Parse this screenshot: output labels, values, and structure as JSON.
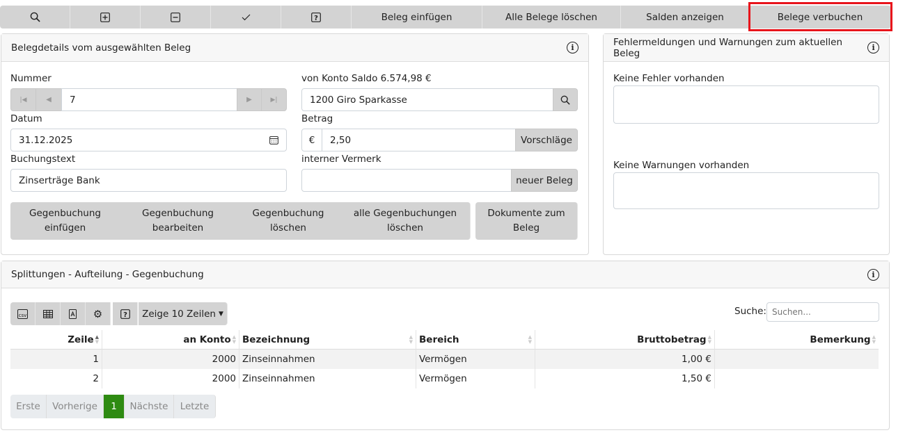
{
  "toolbar": {
    "icons": [
      "search-icon",
      "plus-square-icon",
      "minus-square-icon",
      "check-icon",
      "question-square-icon"
    ],
    "insert": "Beleg einfügen",
    "delete_all": "Alle Belege löschen",
    "balances": "Salden anzeigen",
    "post": "Belege verbuchen",
    "highlight_color": "#e8141b"
  },
  "details": {
    "title": "Belegdetails vom ausgewählten Beleg",
    "nummer_label": "Nummer",
    "nummer": "7",
    "konto_label": "von Konto Saldo 6.574,98 €",
    "konto": "1200 Giro Sparkasse",
    "datum_label": "Datum",
    "datum": "31.12.2025",
    "betrag_label": "Betrag",
    "currency": "€",
    "betrag": "2,50",
    "vorschlaege": "Vorschläge",
    "text_label": "Buchungstext",
    "text": "Zinserträge Bank",
    "vermerk_label": "interner Vermerk",
    "vermerk": "",
    "neuer": "neuer Beleg",
    "buttons": [
      [
        "Gegenbuchung",
        "einfügen"
      ],
      [
        "Gegenbuchung",
        "bearbeiten"
      ],
      [
        "Gegenbuchung",
        "löschen"
      ],
      [
        "alle Gegenbuchungen",
        "löschen"
      ],
      [
        "Dokumente zum",
        "Beleg"
      ]
    ]
  },
  "errors": {
    "title": "Fehlermeldungen und Warnungen zum aktuellen Beleg",
    "no_errors": "Keine Fehler vorhanden",
    "no_warnings": "Keine Warnungen vorhanden"
  },
  "split": {
    "title": "Splittungen - Aufteilung - Gegenbuchung",
    "rows_label": "Zeige 10 Zeilen",
    "search_label": "Suche:",
    "search_placeholder": "Suchen...",
    "columns": [
      "Zeile",
      "an Konto",
      "Bezeichnung",
      "Bereich",
      "Bruttobetrag",
      "Bemerkung"
    ],
    "rows": [
      [
        "1",
        "2000",
        "Zinseinnahmen",
        "Vermögen",
        "1,00 €",
        ""
      ],
      [
        "2",
        "2000",
        "Zinseinnahmen",
        "Vermögen",
        "1,50 €",
        ""
      ]
    ],
    "pagination": {
      "first": "Erste",
      "prev": "Vorherige",
      "current": "1",
      "next": "Nächste",
      "last": "Letzte",
      "active_color": "#2e8b12"
    }
  }
}
